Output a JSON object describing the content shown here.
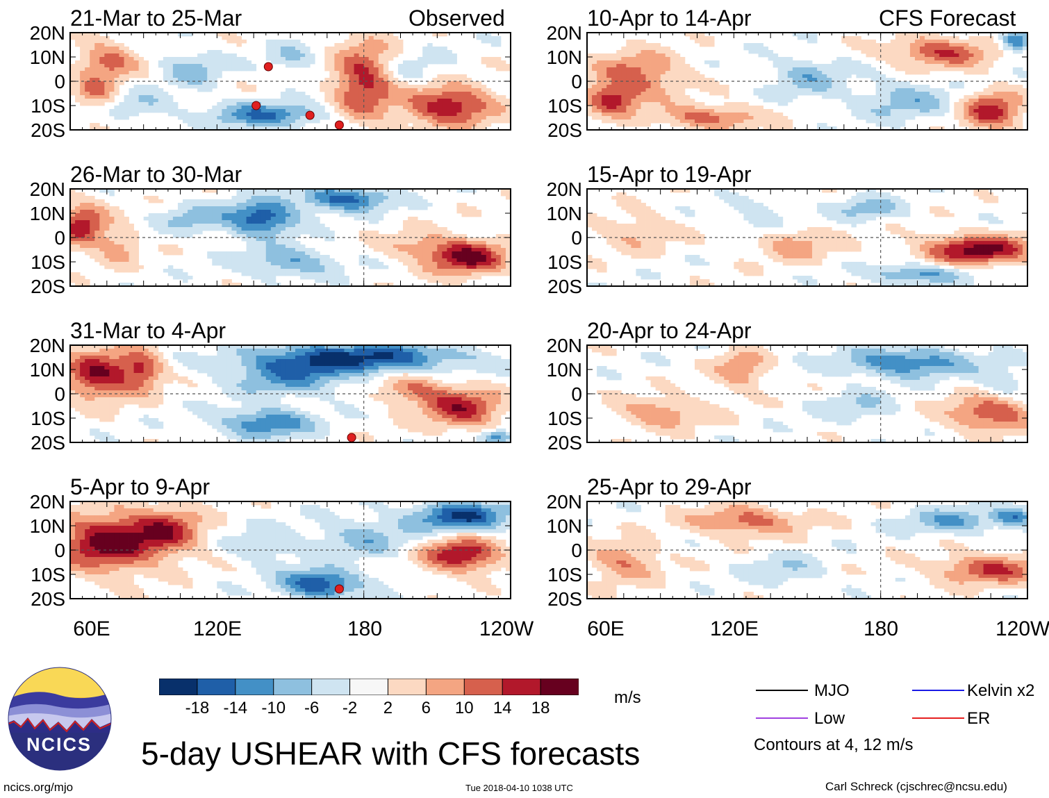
{
  "figure": {
    "title": "5-day USHEAR with CFS forecasts",
    "units": "m/s",
    "website": "ncics.org/mjo",
    "timestamp": "Tue 2018-04-10 1038 UTC",
    "author": "Carl Schreck (cjschrec@ncsu.edu)",
    "logo_text": "NCICS",
    "left_column_header": "Observed",
    "right_column_header": "CFS Forecast",
    "contour_note": "Contours at 4, 12 m/s"
  },
  "colors": {
    "scale": [
      "#08306b",
      "#1f5fa8",
      "#4390c6",
      "#8ec0df",
      "#cfe4f1",
      "#f7f7f7",
      "#fcd9c2",
      "#f4a582",
      "#d6604d",
      "#b2182b",
      "#67001f"
    ],
    "mjo": "#000000",
    "kelvin": "#1a1ae6",
    "low": "#a040e0",
    "er": "#e62020"
  },
  "legend": {
    "mjo": "MJO",
    "kelvin": "Kelvin x2",
    "low": "Low",
    "er": "ER"
  },
  "chart_data": {
    "type": "heatmap",
    "variable": "USHEAR (m/s)",
    "colorbar_ticks": [
      "-18",
      "-14",
      "-10",
      "-6",
      "-2",
      "2",
      "6",
      "10",
      "14",
      "18"
    ],
    "colorbar_bounds": [
      -18,
      -14,
      -10,
      -6,
      -2,
      2,
      6,
      10,
      14,
      18
    ],
    "y_ticks": [
      "20N",
      "10N",
      "0",
      "10S",
      "20S"
    ],
    "x_ticks": [
      "60E",
      "120E",
      "180",
      "120W"
    ],
    "x_ticks_right": [
      "60E",
      "120E",
      "180",
      "120W"
    ],
    "xlim_deg_east": [
      60,
      240
    ],
    "ylim_deg": [
      -20,
      20
    ],
    "panels": [
      {
        "title": "21-Mar to 25-Mar",
        "column": "Observed",
        "blobs": [
          [
            75,
            8,
            12,
            8,
            12
          ],
          [
            70,
            -5,
            8,
            6,
            10
          ],
          [
            90,
            -10,
            12,
            6,
            -6
          ],
          [
            110,
            5,
            12,
            7,
            -8
          ],
          [
            140,
            -14,
            22,
            5,
            -14
          ],
          [
            180,
            0,
            12,
            16,
            16
          ],
          [
            215,
            -10,
            18,
            8,
            18
          ],
          [
            150,
            10,
            10,
            6,
            -6
          ],
          [
            200,
            5,
            14,
            7,
            -4
          ]
        ],
        "cyclone_tracks": [
          [
            141,
            6
          ],
          [
            136,
            -10
          ],
          [
            158,
            -14
          ],
          [
            170,
            -18
          ]
        ]
      },
      {
        "title": "26-Mar to 30-Mar",
        "column": "Observed",
        "blobs": [
          [
            65,
            5,
            10,
            9,
            16
          ],
          [
            80,
            -4,
            8,
            7,
            8
          ],
          [
            138,
            8,
            14,
            7,
            -18
          ],
          [
            172,
            16,
            18,
            5,
            -16
          ],
          [
            150,
            -10,
            20,
            6,
            -10
          ],
          [
            222,
            -8,
            16,
            7,
            20
          ],
          [
            110,
            8,
            12,
            6,
            -8
          ],
          [
            200,
            -3,
            14,
            6,
            6
          ]
        ],
        "cyclone_tracks": []
      },
      {
        "title": "31-Mar to 4-Apr",
        "column": "Observed",
        "blobs": [
          [
            72,
            8,
            15,
            10,
            18
          ],
          [
            90,
            10,
            8,
            8,
            12
          ],
          [
            180,
            15,
            40,
            6,
            -18
          ],
          [
            150,
            8,
            24,
            8,
            -12
          ],
          [
            140,
            -12,
            18,
            6,
            -14
          ],
          [
            220,
            -6,
            16,
            8,
            16
          ],
          [
            200,
            2,
            14,
            6,
            10
          ],
          [
            235,
            -18,
            6,
            3,
            -14
          ]
        ],
        "cyclone_tracks": [
          [
            175,
            -18
          ]
        ]
      },
      {
        "title": "5-Apr to 9-Apr",
        "column": "Observed",
        "blobs": [
          [
            75,
            3,
            20,
            12,
            20
          ],
          [
            100,
            8,
            14,
            10,
            14
          ],
          [
            162,
            -14,
            16,
            6,
            -18
          ],
          [
            220,
            14,
            20,
            6,
            -18
          ],
          [
            220,
            -2,
            16,
            7,
            18
          ],
          [
            180,
            5,
            20,
            8,
            -8
          ],
          [
            140,
            2,
            14,
            7,
            -6
          ]
        ],
        "cyclone_tracks": [
          [
            170,
            -16
          ]
        ]
      },
      {
        "title": "10-Apr to 14-Apr",
        "column": "CFS Forecast",
        "blobs": [
          [
            80,
            2,
            18,
            10,
            12
          ],
          [
            70,
            -8,
            10,
            6,
            14
          ],
          [
            110,
            -15,
            20,
            5,
            12
          ],
          [
            205,
            12,
            20,
            6,
            14
          ],
          [
            225,
            -12,
            12,
            8,
            16
          ],
          [
            150,
            2,
            14,
            8,
            -8
          ],
          [
            190,
            -8,
            20,
            8,
            -8
          ],
          [
            235,
            16,
            6,
            4,
            -16
          ]
        ],
        "cyclone_tracks": []
      },
      {
        "title": "15-Apr to 19-Apr",
        "column": "CFS Forecast",
        "blobs": [
          [
            220,
            -5,
            22,
            6,
            20
          ],
          [
            195,
            -15,
            18,
            4,
            -12
          ],
          [
            175,
            12,
            14,
            5,
            -8
          ],
          [
            80,
            2,
            16,
            8,
            6
          ],
          [
            145,
            -3,
            16,
            7,
            8
          ],
          [
            130,
            8,
            10,
            6,
            -6
          ]
        ],
        "cyclone_tracks": []
      },
      {
        "title": "20-Apr to 24-Apr",
        "column": "CFS Forecast",
        "blobs": [
          [
            190,
            13,
            26,
            6,
            -14
          ],
          [
            225,
            -8,
            18,
            7,
            14
          ],
          [
            90,
            -8,
            18,
            6,
            10
          ],
          [
            123,
            10,
            10,
            8,
            10
          ],
          [
            170,
            -5,
            16,
            6,
            -6
          ],
          [
            230,
            5,
            10,
            6,
            -6
          ]
        ],
        "cyclone_tracks": []
      },
      {
        "title": "25-Apr to 29-Apr",
        "column": "CFS Forecast",
        "blobs": [
          [
            75,
            -5,
            14,
            8,
            10
          ],
          [
            125,
            12,
            22,
            6,
            12
          ],
          [
            225,
            -8,
            22,
            6,
            14
          ],
          [
            210,
            12,
            20,
            5,
            -10
          ],
          [
            140,
            -8,
            16,
            6,
            -6
          ],
          [
            235,
            14,
            8,
            4,
            -12
          ]
        ],
        "cyclone_tracks": []
      }
    ]
  }
}
